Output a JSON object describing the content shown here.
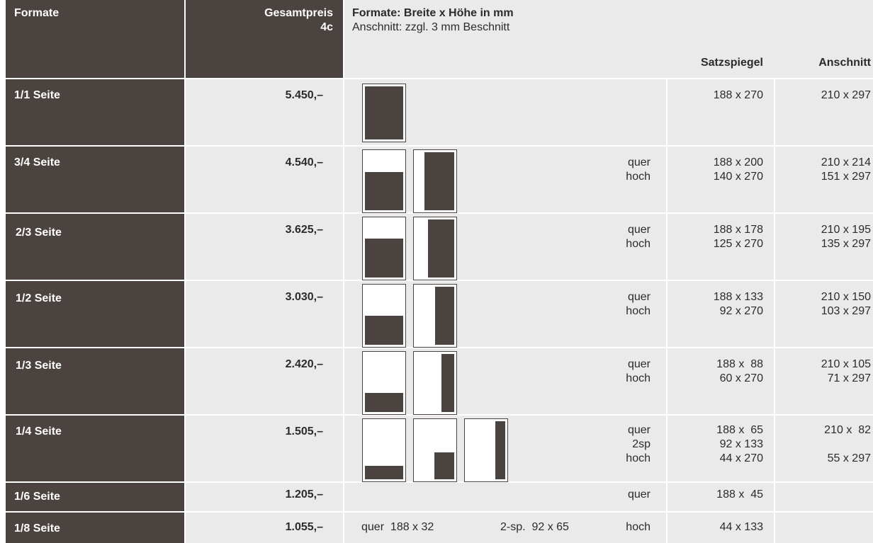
{
  "header": {
    "formate_label": "Formate",
    "price_label_line1": "Gesamtpreis",
    "price_label_line2": "4c",
    "dims_title": "Formate: Breite x Höhe in mm",
    "dims_subtitle": "Anschnitt: zzgl. 3 mm Beschnitt",
    "col_satzspiegel": "Satzspiegel",
    "col_anschnitt": "Anschnitt"
  },
  "rows": [
    {
      "label": "1/1 Seite",
      "price": "5.450,–",
      "orient": [
        "",
        "",
        ""
      ],
      "satz": [
        "188 x 270",
        "",
        ""
      ],
      "anschnitt": [
        "210 x 297",
        "",
        ""
      ]
    },
    {
      "label": "3/4 Seite",
      "price": "4.540,–",
      "orient": [
        "quer",
        "hoch",
        ""
      ],
      "satz": [
        "188 x 200",
        "140 x 270",
        ""
      ],
      "anschnitt": [
        "210 x 214",
        "151 x 297",
        ""
      ]
    },
    {
      "label": "2/3 Seite",
      "price": "3.625,–",
      "orient": [
        "quer",
        "hoch",
        ""
      ],
      "satz": [
        "188 x 178",
        "125 x 270",
        ""
      ],
      "anschnitt": [
        "210 x 195",
        "135 x 297",
        ""
      ]
    },
    {
      "label": "1/2 Seite",
      "price": "3.030,–",
      "orient": [
        "quer",
        "hoch",
        ""
      ],
      "satz": [
        "188 x 133",
        "92 x 270",
        ""
      ],
      "anschnitt": [
        "210 x 150",
        "103 x 297",
        ""
      ]
    },
    {
      "label": "1/3 Seite",
      "price": "2.420,–",
      "orient": [
        "quer",
        "hoch",
        ""
      ],
      "satz": [
        "188 x  88",
        "60 x 270",
        ""
      ],
      "anschnitt": [
        "210 x 105",
        "71 x 297",
        ""
      ]
    },
    {
      "label": "1/4 Seite",
      "price": "1.505,–",
      "orient": [
        "quer",
        "2sp",
        "hoch"
      ],
      "satz": [
        "188 x  65",
        "92 x 133",
        "44 x 270"
      ],
      "anschnitt": [
        "210 x  82",
        "",
        "55 x 297"
      ]
    },
    {
      "label": "1/6 Seite",
      "price": "1.205,–",
      "orient": [
        "quer",
        "",
        ""
      ],
      "satz": [
        "188 x  45",
        "",
        ""
      ],
      "anschnitt": [
        "",
        "",
        ""
      ]
    },
    {
      "label": "1/8 Seite",
      "price": "1.055,–",
      "orient": [
        "hoch",
        "",
        ""
      ],
      "satz": [
        "44 x 133",
        "",
        ""
      ],
      "anschnitt": [
        "",
        "",
        ""
      ],
      "extra": {
        "quer": "quer  188 x 32",
        "zweisp": "2-sp.  92 x 65"
      }
    }
  ]
}
